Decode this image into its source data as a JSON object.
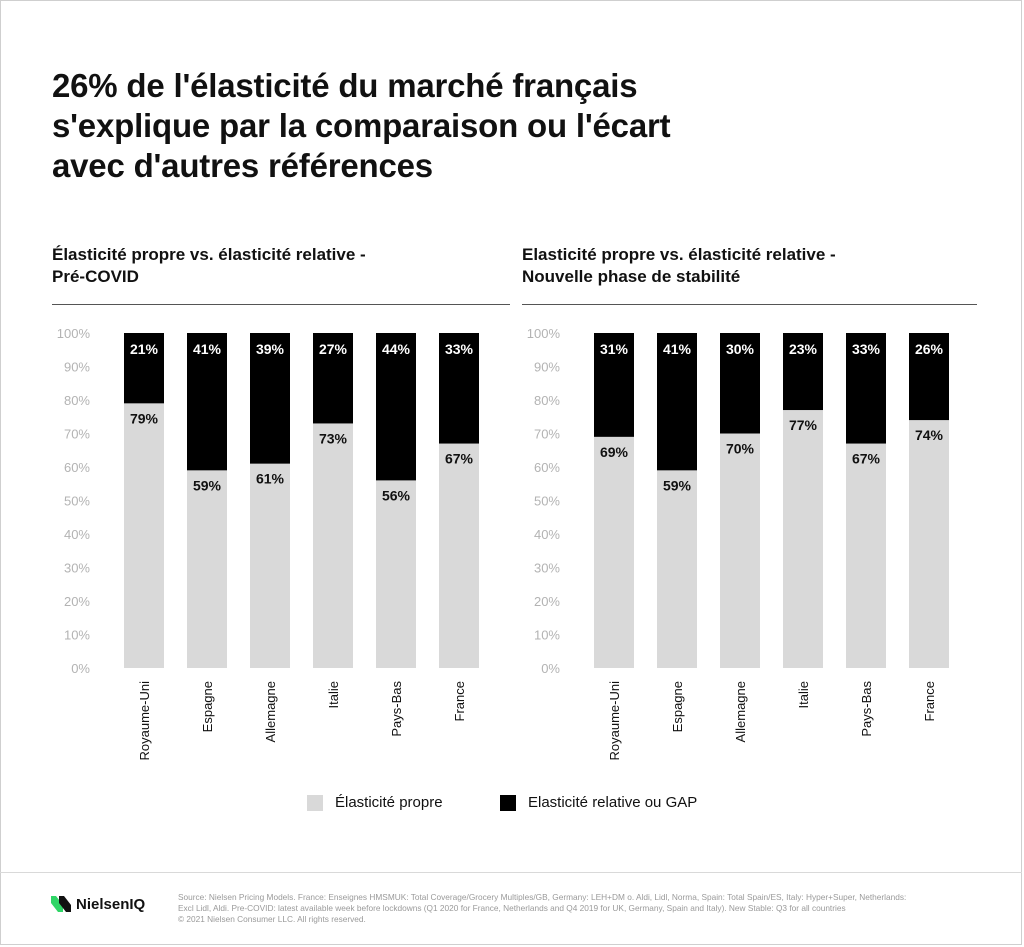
{
  "headline": {
    "line1": "26% de l'élasticité du marché français",
    "line2": "s'explique par la comparaison ou l'écart",
    "line3": "avec d'autres références"
  },
  "colors": {
    "own": "#d9d9d9",
    "relative": "#000000",
    "axis_text": "#b3b3b3",
    "category_text": "#111111"
  },
  "chart_data": [
    {
      "type": "bar",
      "stacked": true,
      "title_line1": "Élasticité propre vs. élasticité relative -",
      "title_line2": "Pré-COVID",
      "categories": [
        "Royaume-Uni",
        "Espagne",
        "Allemagne",
        "Italie",
        "Pays-Bas",
        "France"
      ],
      "series": [
        {
          "name": "Élasticité propre",
          "values": [
            79,
            59,
            61,
            73,
            56,
            67
          ]
        },
        {
          "name": "Elasticité relative ou GAP",
          "values": [
            21,
            41,
            39,
            27,
            44,
            33
          ]
        }
      ],
      "ylim": [
        0,
        100
      ],
      "yticks": [
        "0%",
        "10%",
        "20%",
        "30%",
        "40%",
        "50%",
        "60%",
        "70%",
        "80%",
        "90%",
        "100%"
      ]
    },
    {
      "type": "bar",
      "stacked": true,
      "title_line1": "Elasticité propre vs. élasticité relative -",
      "title_line2": "Nouvelle phase de stabilité",
      "categories": [
        "Royaume-Uni",
        "Espagne",
        "Allemagne",
        "Italie",
        "Pays-Bas",
        "France"
      ],
      "series": [
        {
          "name": "Élasticité propre",
          "values": [
            69,
            59,
            70,
            77,
            67,
            74
          ]
        },
        {
          "name": "Elasticité relative ou GAP",
          "values": [
            31,
            41,
            30,
            23,
            33,
            26
          ]
        }
      ],
      "ylim": [
        0,
        100
      ],
      "yticks": [
        "0%",
        "10%",
        "20%",
        "30%",
        "40%",
        "50%",
        "60%",
        "70%",
        "80%",
        "90%",
        "100%"
      ]
    }
  ],
  "legend": {
    "own_label": "Élasticité propre",
    "relative_label": "Elasticité relative ou GAP"
  },
  "footer": {
    "brand": "NielsenIQ",
    "source_line1": "Source: Nielsen Pricing Models. France: Enseignes HMSMUK: Total Coverage/Grocery Multiples/GB, Germany: LEH+DM o. Aldi, Lidl, Norma, Spain: Total Spain/ES, Italy: Hyper+Super, Netherlands:",
    "source_line2": "Excl Lidl, Aldi. Pre-COVID: latest available week before lockdowns (Q1 2020 for France, Netherlands and Q4 2019 for UK, Germany, Spain and Italy). New Stable: Q3 for all countries",
    "source_line3": "© 2021 Nielsen Consumer LLC. All rights reserved."
  }
}
